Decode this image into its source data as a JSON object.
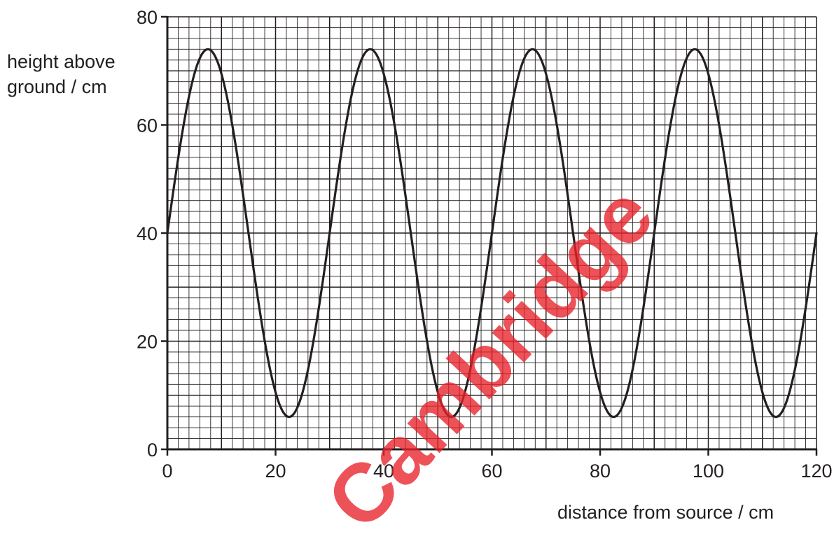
{
  "chart_data": {
    "type": "line",
    "xlabel": "distance from source / cm",
    "ylabel": [
      "height above",
      "ground / cm"
    ],
    "xlim": [
      0,
      120
    ],
    "ylim": [
      0,
      80
    ],
    "xticks": [
      "0",
      "20",
      "40",
      "60",
      "80",
      "100",
      "120"
    ],
    "yticks": [
      "0",
      "20",
      "40",
      "60",
      "80"
    ],
    "grid": true,
    "series": [
      {
        "x": [
          0,
          7.5,
          22.5,
          37.5,
          52.5,
          67.5,
          82.5,
          97.5,
          112.5,
          120
        ],
        "y": [
          40,
          74,
          6,
          74,
          6,
          74,
          6,
          74,
          6,
          40
        ]
      }
    ],
    "line_color": "#231f20"
  },
  "watermark": {
    "text": "Cambridge",
    "color": "#e8222a"
  }
}
